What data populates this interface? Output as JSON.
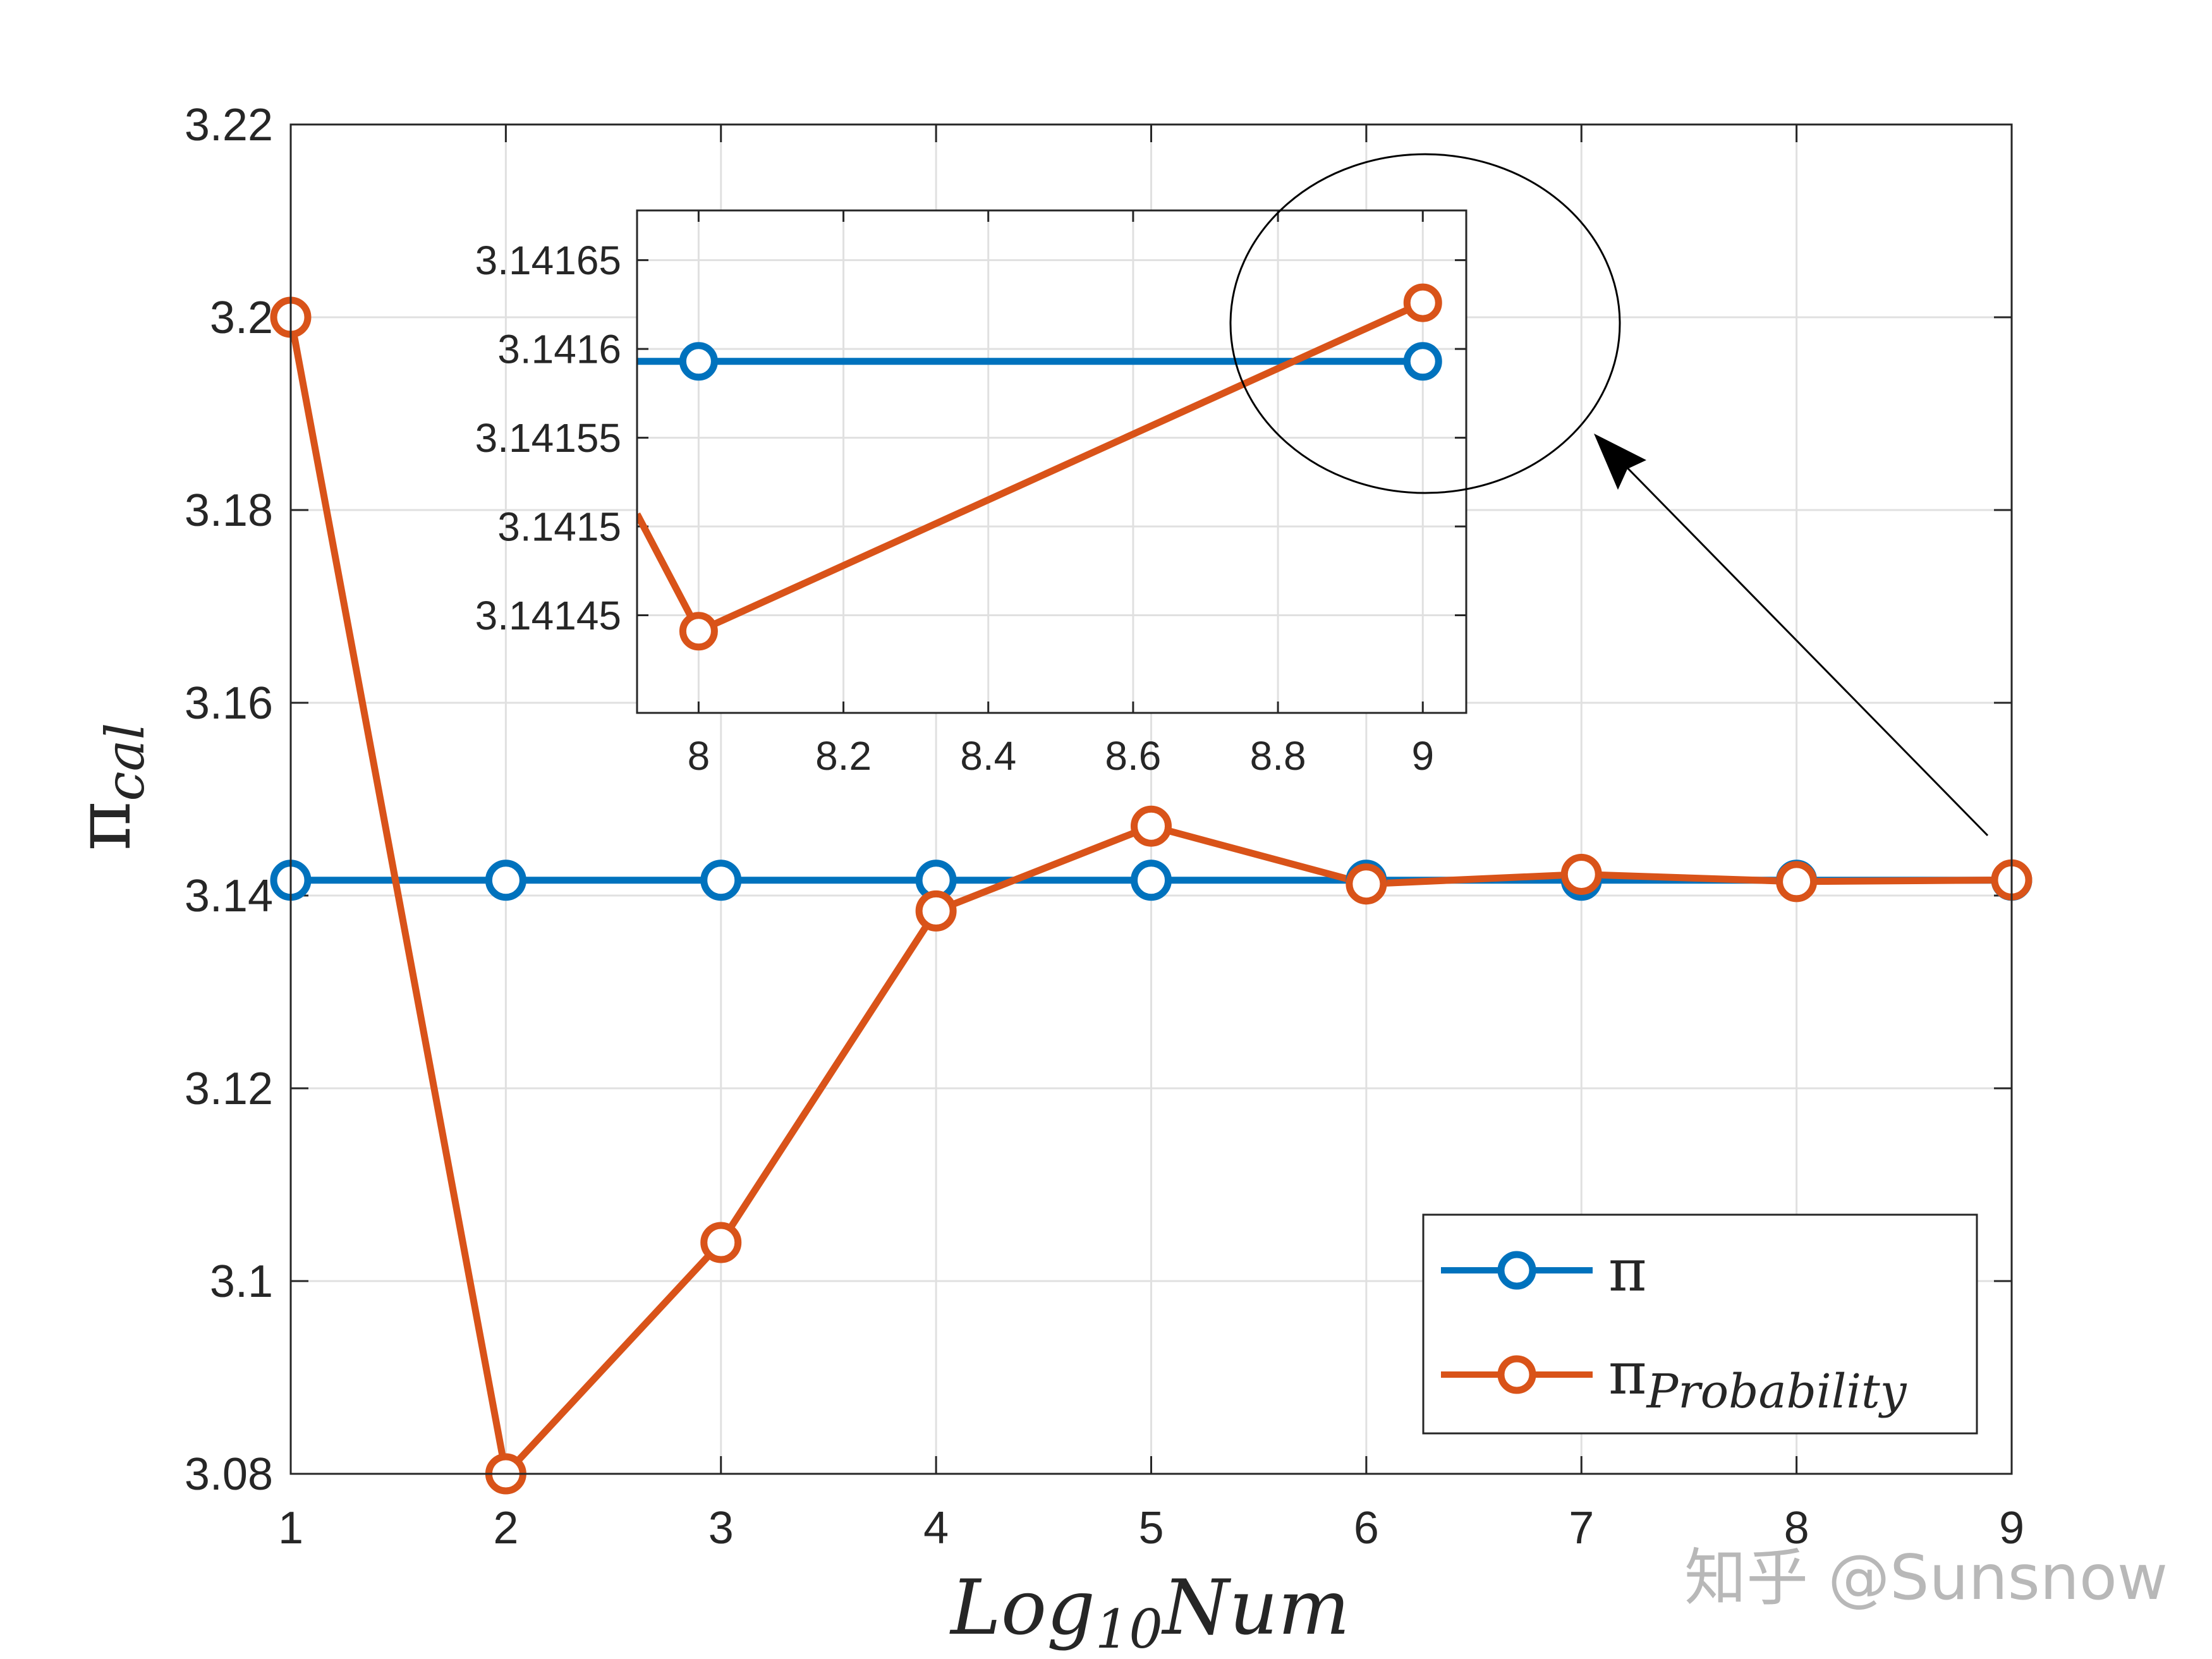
{
  "chart_data": [
    {
      "type": "line",
      "ylabel": "π",
      "ylabel_sub": "cal",
      "xlabel_main": "Log",
      "xlabel_sub": "10",
      "xlabel_tail": "Num",
      "xlim": [
        1,
        9
      ],
      "ylim": [
        3.08,
        3.22
      ],
      "x_ticks": [
        1,
        2,
        3,
        4,
        5,
        6,
        7,
        8,
        9
      ],
      "y_ticks": [
        3.08,
        3.1,
        3.12,
        3.14,
        3.16,
        3.18,
        3.2,
        3.22
      ],
      "y_tick_labels": [
        "3.08",
        "3.1",
        "3.12",
        "3.14",
        "3.16",
        "3.18",
        "3.2",
        "3.22"
      ],
      "grid": true,
      "legend_position": "bottom-right",
      "series": [
        {
          "name": "π",
          "name_sub": "",
          "color": "#0072BD",
          "x": [
            1,
            2,
            3,
            4,
            5,
            6,
            7,
            8,
            9
          ],
          "y": [
            3.14159,
            3.14159,
            3.14159,
            3.14159,
            3.14159,
            3.14159,
            3.14159,
            3.14159,
            3.14159
          ]
        },
        {
          "name": "π",
          "name_sub": "Probability",
          "color": "#D95319",
          "x": [
            1,
            2,
            3,
            4,
            5,
            6,
            7,
            8,
            9
          ],
          "y": [
            3.2,
            3.08,
            3.104,
            3.1384,
            3.1472,
            3.1412,
            3.1422,
            3.14145,
            3.14162
          ]
        }
      ]
    },
    {
      "type": "line",
      "role": "inset",
      "xlim": [
        7.915,
        9.06
      ],
      "ylim": [
        3.141395,
        3.141678
      ],
      "x_ticks": [
        8,
        8.2,
        8.4,
        8.6,
        8.8,
        9
      ],
      "x_tick_labels": [
        "8",
        "8.2",
        "8.4",
        "8.6",
        "8.8",
        "9"
      ],
      "y_ticks": [
        3.14145,
        3.1415,
        3.14155,
        3.1416,
        3.14165
      ],
      "y_tick_labels": [
        "3.14145",
        "3.1415",
        "3.14155",
        "3.1416",
        "3.14165"
      ],
      "grid": true,
      "series": [
        {
          "name": "π",
          "color": "#0072BD",
          "x": [
            7.915,
            8,
            9
          ],
          "y": [
            3.141593,
            3.141593,
            3.141593
          ],
          "markers_at": [
            8,
            9
          ]
        },
        {
          "name": "π",
          "name_sub": "Probability",
          "color": "#D95319",
          "x": [
            7.915,
            8,
            9
          ],
          "y": [
            3.141507,
            3.141441,
            3.141626
          ],
          "markers_at": [
            8,
            9
          ]
        }
      ]
    }
  ],
  "watermark": "知乎 @Sunsnow",
  "colors": {
    "axis": "#262626",
    "grid": "#e0e0e0",
    "pi": "#0072BD",
    "prob": "#D95319"
  }
}
